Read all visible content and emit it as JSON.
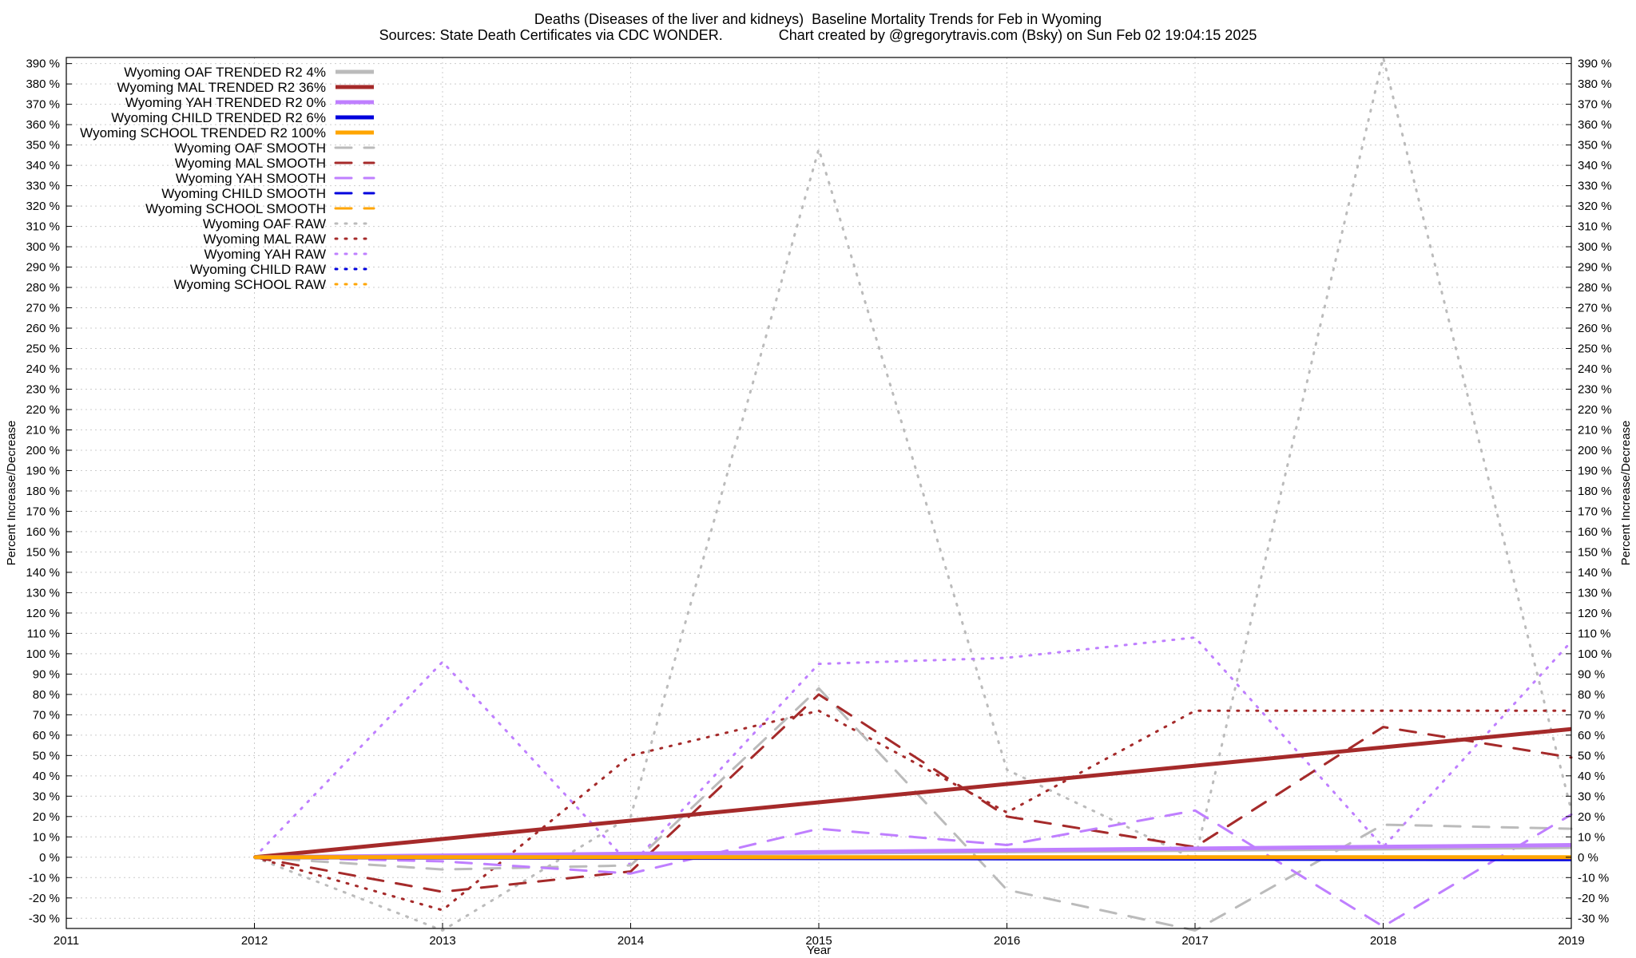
{
  "header": {
    "title": "Deaths (Diseases of the liver and kidneys)  Baseline Mortality Trends for Feb in Wyoming",
    "subtitle": "Sources: State Death Certificates via CDC WONDER.              Chart created by @gregorytravis.com (Bsky) on Sun Feb 02 19:04:15 2025"
  },
  "chart_data": {
    "type": "line",
    "title": "Deaths (Diseases of the liver and kidneys)  Baseline Mortality Trends for Feb in Wyoming",
    "subtitle": "Sources: State Death Certificates via CDC WONDER.              Chart created by @gregorytravis.com (Bsky) on Sun Feb 02 19:04:15 2025",
    "xlabel": "Year",
    "ylabel": "Percent Increase/Decrease",
    "y2label": "Percent Increase/Decrease",
    "xlim": [
      2011,
      2019
    ],
    "ylim": [
      -35,
      393
    ],
    "x_ticks": [
      2011,
      2012,
      2013,
      2014,
      2015,
      2016,
      2017,
      2018,
      2019
    ],
    "y_ticks": [
      -30,
      -20,
      -10,
      0,
      10,
      20,
      30,
      40,
      50,
      60,
      70,
      80,
      90,
      100,
      110,
      120,
      130,
      140,
      150,
      160,
      170,
      180,
      190,
      200,
      210,
      220,
      230,
      240,
      250,
      260,
      270,
      280,
      290,
      300,
      310,
      320,
      330,
      340,
      350,
      360,
      370,
      380,
      390
    ],
    "y_tick_suffix": " %",
    "grid": true,
    "legend_position": "top-left",
    "colors": {
      "OAF": "#bbbbbb",
      "MAL": "#a52a2a",
      "YAH": "#bf7fff",
      "CHILD": "#0000dd",
      "SCHOOL": "#ffa500"
    },
    "series": [
      {
        "name": "Wyoming OAF TRENDED R2   4%",
        "group": "OAF",
        "style": "trended",
        "x": [
          2012,
          2019
        ],
        "y": [
          0,
          5
        ]
      },
      {
        "name": "Wyoming MAL TRENDED R2  36%",
        "group": "MAL",
        "style": "trended",
        "x": [
          2012,
          2019
        ],
        "y": [
          0,
          63
        ]
      },
      {
        "name": "Wyoming YAH TRENDED R2   0%",
        "group": "YAH",
        "style": "trended",
        "x": [
          2012,
          2019
        ],
        "y": [
          0,
          6
        ]
      },
      {
        "name": "Wyoming CHILD TRENDED R2   6%",
        "group": "CHILD",
        "style": "trended",
        "x": [
          2012,
          2019
        ],
        "y": [
          0,
          -1
        ]
      },
      {
        "name": "Wyoming SCHOOL TRENDED R2 100%",
        "group": "SCHOOL",
        "style": "trended",
        "x": [
          2012,
          2019
        ],
        "y": [
          0,
          0
        ]
      },
      {
        "name": "Wyoming OAF SMOOTH",
        "group": "OAF",
        "style": "smooth",
        "x": [
          2012,
          2013,
          2014,
          2015,
          2016,
          2017,
          2018,
          2019
        ],
        "y": [
          0,
          -6,
          -4,
          83,
          -16,
          -36,
          16,
          14
        ]
      },
      {
        "name": "Wyoming MAL SMOOTH",
        "group": "MAL",
        "style": "smooth",
        "x": [
          2012,
          2013,
          2014,
          2015,
          2016,
          2017,
          2018,
          2019
        ],
        "y": [
          0,
          -17,
          -7,
          80,
          20,
          5,
          64,
          49
        ]
      },
      {
        "name": "Wyoming YAH SMOOTH",
        "group": "YAH",
        "style": "smooth",
        "x": [
          2012,
          2013,
          2014,
          2015,
          2016,
          2017,
          2018,
          2019
        ],
        "y": [
          0,
          -2,
          -8,
          14,
          6,
          23,
          -34,
          21
        ]
      },
      {
        "name": "Wyoming CHILD SMOOTH",
        "group": "CHILD",
        "style": "smooth",
        "x": [
          2012,
          2019
        ],
        "y": [
          0,
          0
        ]
      },
      {
        "name": "Wyoming SCHOOL SMOOTH",
        "group": "SCHOOL",
        "style": "smooth",
        "x": [
          2012,
          2019
        ],
        "y": [
          0,
          0
        ]
      },
      {
        "name": "Wyoming OAF RAW",
        "group": "OAF",
        "style": "raw",
        "x": [
          2012,
          2013,
          2014,
          2015,
          2016,
          2017,
          2018,
          2019
        ],
        "y": [
          0,
          -36,
          20,
          348,
          43,
          -1,
          393,
          23
        ]
      },
      {
        "name": "Wyoming MAL RAW",
        "group": "MAL",
        "style": "raw",
        "x": [
          2012,
          2013,
          2014,
          2015,
          2016,
          2017,
          2018,
          2019
        ],
        "y": [
          0,
          -26,
          50,
          72,
          22,
          72,
          72,
          72
        ]
      },
      {
        "name": "Wyoming YAH RAW",
        "group": "YAH",
        "style": "raw",
        "x": [
          2012,
          2013,
          2014,
          2015,
          2016,
          2017,
          2018,
          2019
        ],
        "y": [
          0,
          96,
          -4,
          95,
          98,
          108,
          5,
          106
        ]
      },
      {
        "name": "Wyoming CHILD RAW",
        "group": "CHILD",
        "style": "raw",
        "x": [
          2012,
          2019
        ],
        "y": [
          0,
          0
        ]
      },
      {
        "name": "Wyoming SCHOOL RAW",
        "group": "SCHOOL",
        "style": "raw",
        "x": [
          2012,
          2019
        ],
        "y": [
          0,
          0
        ]
      }
    ]
  }
}
